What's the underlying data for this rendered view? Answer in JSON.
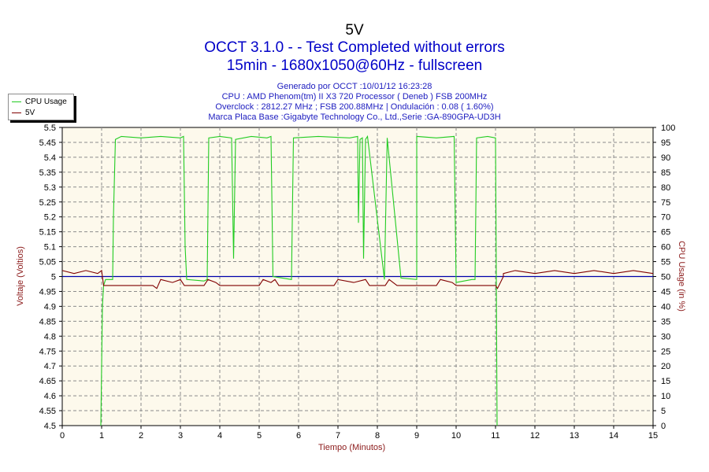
{
  "titles": {
    "line1": "5V",
    "line2": "OCCT 3.1.0 -  - Test Completed without errors",
    "line3": "15min - 1680x1050@60Hz - fullscreen"
  },
  "info": {
    "generated": "Generado por OCCT :10/01/12 16:23:28",
    "cpu": "CPU : AMD Phenom(tm) II X3 720 Processor ( Deneb ) FSB 200MHz",
    "overclock": "Overclock : 2812.27 MHz ; FSB 200.88MHz | Ondulación : 0.08 ( 1.60%)",
    "motherboard": "Marca Placa Base :Gigabyte Technology Co., Ltd.,Serie :GA-890GPA-UD3H"
  },
  "legend": [
    {
      "label": "CPU Usage",
      "color": "#22cc22"
    },
    {
      "label": "5V",
      "color": "#800000"
    }
  ],
  "axes": {
    "xlabel": "Tiempo (Minutos)",
    "ylabel_left": "Voltaje (Voltios)",
    "ylabel_right": "CPU Usage (in %)"
  },
  "colors": {
    "plot_bg": "#fdf9ec",
    "grid": "#8c8c8c",
    "reference_line": "#0000aa",
    "axis_text": "#000000",
    "title": "#0000c8",
    "axis_title": "#8b1a1a"
  },
  "chart_data": {
    "type": "line",
    "xlim": [
      0,
      15
    ],
    "ylim_left": [
      4.5,
      5.5
    ],
    "ylim_right": [
      0,
      100
    ],
    "grid": true,
    "legend_position": "top-left",
    "x_ticks": [
      "0",
      "1",
      "2",
      "3",
      "4",
      "5",
      "6",
      "7",
      "8",
      "9",
      "10",
      "11",
      "12",
      "13",
      "14",
      "15"
    ],
    "y_ticks_left": [
      "4.5",
      "4.55",
      "4.6",
      "4.65",
      "4.7",
      "4.75",
      "4.8",
      "4.85",
      "4.9",
      "4.95",
      "5",
      "5.05",
      "5.1",
      "5.15",
      "5.2",
      "5.25",
      "5.3",
      "5.35",
      "5.4",
      "5.45",
      "5.5"
    ],
    "y_ticks_right": [
      "0",
      "5",
      "10",
      "15",
      "20",
      "25",
      "30",
      "35",
      "40",
      "45",
      "50",
      "55",
      "60",
      "65",
      "70",
      "75",
      "80",
      "85",
      "90",
      "95",
      "100"
    ],
    "reference_line_y": 5.0,
    "series": [
      {
        "name": "CPU Usage",
        "axis": "right",
        "color": "#22cc22",
        "points": [
          [
            0.98,
            0
          ],
          [
            1.02,
            40
          ],
          [
            1.05,
            47
          ],
          [
            1.1,
            49
          ],
          [
            1.28,
            49
          ],
          [
            1.3,
            70
          ],
          [
            1.35,
            96
          ],
          [
            1.5,
            97
          ],
          [
            2.0,
            96.5
          ],
          [
            2.5,
            97
          ],
          [
            3.0,
            96.5
          ],
          [
            3.08,
            97
          ],
          [
            3.12,
            60
          ],
          [
            3.16,
            49
          ],
          [
            3.6,
            48.5
          ],
          [
            3.68,
            49
          ],
          [
            3.72,
            96.5
          ],
          [
            4.0,
            97
          ],
          [
            4.3,
            96.5
          ],
          [
            4.35,
            56
          ],
          [
            4.4,
            96
          ],
          [
            4.8,
            97
          ],
          [
            5.2,
            96.5
          ],
          [
            5.3,
            97
          ],
          [
            5.35,
            50
          ],
          [
            5.82,
            49
          ],
          [
            5.87,
            96.5
          ],
          [
            6.5,
            97
          ],
          [
            7.3,
            96.5
          ],
          [
            7.5,
            97
          ],
          [
            7.52,
            68
          ],
          [
            7.56,
            96
          ],
          [
            7.62,
            96.5
          ],
          [
            7.65,
            56
          ],
          [
            7.7,
            96
          ],
          [
            7.75,
            97
          ],
          [
            8.18,
            49
          ],
          [
            8.6,
            49.5
          ],
          [
            9.0,
            49
          ],
          [
            8.25,
            96.5
          ],
          [
            9.0,
            97
          ],
          [
            9.5,
            96.5
          ],
          [
            9.95,
            97
          ],
          [
            10.0,
            48
          ],
          [
            10.4,
            49
          ],
          [
            10.48,
            49
          ],
          [
            10.52,
            96.5
          ],
          [
            10.8,
            97
          ],
          [
            11.0,
            96.5
          ],
          [
            11.02,
            50
          ],
          [
            11.04,
            0
          ]
        ]
      },
      {
        "name": "5V",
        "axis": "left",
        "color": "#800000",
        "points": [
          [
            0.0,
            5.02
          ],
          [
            0.3,
            5.01
          ],
          [
            0.6,
            5.02
          ],
          [
            0.9,
            5.01
          ],
          [
            1.0,
            5.02
          ],
          [
            1.05,
            4.97
          ],
          [
            1.5,
            4.97
          ],
          [
            2.3,
            4.97
          ],
          [
            2.4,
            4.96
          ],
          [
            2.5,
            4.99
          ],
          [
            2.8,
            4.98
          ],
          [
            3.0,
            4.99
          ],
          [
            3.1,
            4.97
          ],
          [
            3.6,
            4.97
          ],
          [
            3.7,
            4.99
          ],
          [
            3.9,
            4.98
          ],
          [
            4.0,
            4.97
          ],
          [
            5.0,
            4.97
          ],
          [
            5.1,
            4.99
          ],
          [
            5.3,
            4.98
          ],
          [
            5.4,
            4.99
          ],
          [
            5.5,
            4.97
          ],
          [
            6.9,
            4.97
          ],
          [
            7.0,
            4.99
          ],
          [
            7.4,
            4.98
          ],
          [
            7.7,
            4.99
          ],
          [
            7.8,
            4.97
          ],
          [
            8.2,
            4.97
          ],
          [
            8.3,
            4.99
          ],
          [
            8.5,
            4.97
          ],
          [
            9.5,
            4.97
          ],
          [
            9.6,
            4.99
          ],
          [
            9.9,
            4.98
          ],
          [
            10.0,
            4.97
          ],
          [
            11.0,
            4.97
          ],
          [
            11.05,
            4.96
          ],
          [
            11.2,
            5.0
          ],
          [
            11.2,
            5.01
          ],
          [
            11.5,
            5.02
          ],
          [
            12.0,
            5.01
          ],
          [
            12.5,
            5.02
          ],
          [
            13.0,
            5.01
          ],
          [
            13.5,
            5.02
          ],
          [
            14.0,
            5.01
          ],
          [
            14.5,
            5.02
          ],
          [
            15.0,
            5.01
          ]
        ]
      }
    ]
  }
}
